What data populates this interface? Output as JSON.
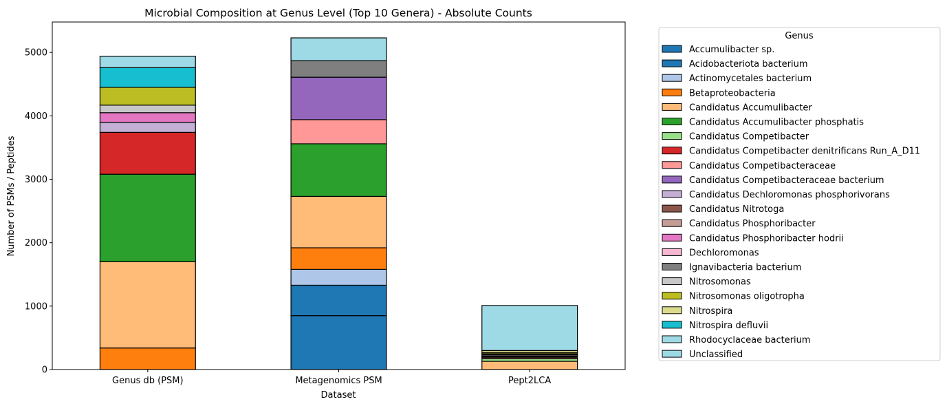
{
  "chart_data": {
    "type": "bar",
    "stacked": true,
    "title": "Microbial Composition at Genus Level (Top 10 Genera) - Absolute Counts",
    "xlabel": "Dataset",
    "ylabel": "Number of PSMs / Peptides",
    "ylim": [
      0,
      5480
    ],
    "yticks": [
      0,
      1000,
      2000,
      3000,
      4000,
      5000
    ],
    "grid": false,
    "categories": [
      "Genus db (PSM)",
      "Metagenomics PSM",
      "Pept2LCA"
    ],
    "legend": {
      "title": "Genus",
      "placement": "outside-right"
    },
    "series": [
      {
        "name": "Accumulibacter sp.",
        "color": "#1f77b4",
        "values": [
          0,
          850,
          0
        ]
      },
      {
        "name": "Acidobacteriota bacterium",
        "color": "#1f77b4",
        "values": [
          0,
          480,
          0
        ]
      },
      {
        "name": "Actinomycetales bacterium",
        "color": "#aec7e8",
        "values": [
          0,
          250,
          0
        ]
      },
      {
        "name": "Betaproteobacteria",
        "color": "#ff7f0e",
        "values": [
          340,
          340,
          0
        ]
      },
      {
        "name": "Candidatus Accumulibacter",
        "color": "#ffbb78",
        "values": [
          1360,
          810,
          130
        ]
      },
      {
        "name": "Candidatus Accumulibacter phosphatis",
        "color": "#2ca02c",
        "values": [
          1380,
          830,
          0
        ]
      },
      {
        "name": "Candidatus Competibacter",
        "color": "#98df8a",
        "values": [
          0,
          0,
          40
        ]
      },
      {
        "name": "Candidatus Competibacter denitrificans Run_A_D11",
        "color": "#d62728",
        "values": [
          660,
          0,
          0
        ]
      },
      {
        "name": "Candidatus Competibacteraceae",
        "color": "#ff9896",
        "values": [
          0,
          380,
          0
        ]
      },
      {
        "name": "Candidatus Competibacteraceae bacterium",
        "color": "#9467bd",
        "values": [
          0,
          670,
          0
        ]
      },
      {
        "name": "Candidatus Dechloromonas phosphorivorans",
        "color": "#c5b0d5",
        "values": [
          160,
          0,
          0
        ]
      },
      {
        "name": "Candidatus Nitrotoga",
        "color": "#8c564b",
        "values": [
          0,
          0,
          25
        ]
      },
      {
        "name": "Candidatus Phosphoribacter",
        "color": "#c49c94",
        "values": [
          0,
          0,
          10
        ]
      },
      {
        "name": "Candidatus Phosphoribacter hodrii",
        "color": "#e377c2",
        "values": [
          150,
          0,
          0
        ]
      },
      {
        "name": "Dechloromonas",
        "color": "#f7b6d2",
        "values": [
          0,
          0,
          10
        ]
      },
      {
        "name": "Ignavibacteria bacterium",
        "color": "#7f7f7f",
        "values": [
          0,
          260,
          20
        ]
      },
      {
        "name": "Nitrosomonas",
        "color": "#c7c7c7",
        "values": [
          120,
          0,
          15
        ]
      },
      {
        "name": "Nitrosomonas oligotropha",
        "color": "#bcbd22",
        "values": [
          280,
          0,
          20
        ]
      },
      {
        "name": "Nitrospira",
        "color": "#dbdb8d",
        "values": [
          0,
          0,
          30
        ]
      },
      {
        "name": "Nitrospira defluvii",
        "color": "#17becf",
        "values": [
          310,
          0,
          0
        ]
      },
      {
        "name": "Rhodocyclaceae bacterium",
        "color": "#9edae5",
        "values": [
          0,
          0,
          0
        ]
      },
      {
        "name": "Unclassified",
        "color": "#9edae5",
        "values": [
          180,
          360,
          710
        ]
      }
    ]
  }
}
